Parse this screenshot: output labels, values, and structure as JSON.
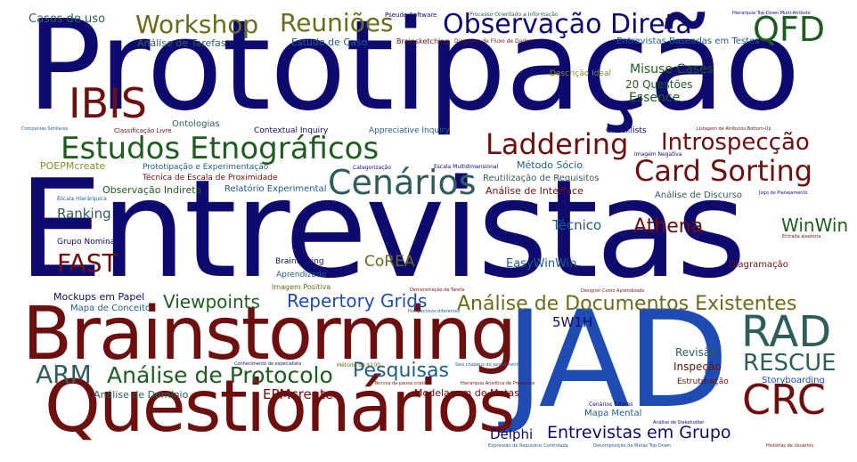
{
  "colors": {
    "navy": "#0f0a6e",
    "maroon": "#6e0f0f",
    "green": "#1f5c1f",
    "teal": "#2f5d5d",
    "olive": "#6b6b1a",
    "blue": "#1e4cb4",
    "steel": "#1f5c88",
    "light_olive": "#8a8a2a"
  },
  "words": {
    "prototipacao": "Prototipação",
    "entrevistas": "Entrevistas",
    "jad": "JAD",
    "brainstorming": "Brainstorming",
    "questionarios": "Questionários",
    "observacao_direta": "Observação Direta",
    "estudos_etnograficos": "Estudos Etnográficos",
    "cenarios": "Cenários",
    "card_sorting": "Card Sorting",
    "laddering": "Laddering",
    "introspeccao": "Introspecção",
    "workshop": "Workshop",
    "reunioes": "Reuniões",
    "qfd": "QFD",
    "ibis": "IBIS",
    "rad": "RAD",
    "crc": "CRC",
    "rescue": "RESCUE",
    "arm": "ARM",
    "analise_protocolo": "Análise de Protocolo",
    "analise_documentos": "Análise de Documentos Existentes",
    "repertory_grids": "Repertory Grids",
    "entrevistas_grupo": "Entrevistas em Grupo",
    "pesquisas": "Pesquisas",
    "viewpoints": "Viewpoints",
    "fast": "FAST",
    "athena": "Athena",
    "winwin": "WinWin",
    "corea": "CoREA",
    "easywinwin": "EasyWinWin",
    "tecnico": "Técnico",
    "ranking": "Ranking",
    "epmcreate": "EPMcreate",
    "delphi": "Delphi",
    "w5h1": "5W1H",
    "misuse_cases": "Misuse Cases",
    "essence": "Essence",
    "vinte_questoes": "20 Questões",
    "casos_de_uso": "Casos de uso",
    "analise_tarefas": "Análise de Tarefas",
    "estudo_caso": "Estudo de Caso",
    "entrevistas_testes": "Entrevistas Baseadas em Testes",
    "metodo_socio": "Método Sócio",
    "analise_interface": "Análise de Interface",
    "analise_discurso": "Análise de Discurso",
    "reutilizacao": "Reutilização de Requisitos",
    "prototipacao_exp": "Prototipação e Experimentação",
    "tecnica_escala": "Técnica de Escala de Proximidade",
    "observacao_indireta": "Observação Indireta",
    "relatorio_exp": "Relatório Experimental",
    "poepmcreate": "POEPMcreate",
    "contextual_inquiry": "Contextual Inquiry",
    "appreciative_inquiry": "Appreciative Inquiry",
    "ontologias": "Ontologias",
    "checklists": "Checklists",
    "grupo_nominal": "Grupo Nominal",
    "brainwriting": "Brainwriting",
    "aprendizado": "Aprendizado",
    "imagem_positiva": "Imagem Positiva",
    "mockups": "Mockups em Papel",
    "mapa_conceito": "Mapa de Conceito",
    "revisao": "Revisão",
    "inspecao": "Inspeção",
    "estruturacao": "Estruturação",
    "storyboarding": "Storyboarding",
    "modelagem_metas": "Modelagem de Metas",
    "analise_dominio": "Análise de Domínio",
    "mapa_mental": "Mapa Mental",
    "diagramacao": "Diagramação",
    "descricao_ideal": "Descrição Ideal",
    "brainsketching": "Brainsketching",
    "pseudo_software": "Pseudo Software",
    "processo_orientado": "Processo Orientado a Informação",
    "diagrama_fluxo": "Diagrama de Fluxo de Dados",
    "hierarquia_topdown": "Hierarquia Top-Down Multi-Atributo",
    "companias": "Companias Similares",
    "classificacao_livre": "Classificação Livre",
    "categorizacao": "Categorização",
    "escala_multi": "Escala Multidimensional",
    "imagem_negativa": "Imagem Negativa",
    "listagem_atributos": "Listagem de Atributos Bottom-Up",
    "jogo_planejamento": "Jogo de Planejamento",
    "escala_hierarquica": "Escala Hierárquica",
    "entrada_aleatoria": "Entrada aleatória",
    "demonstracao_tarefa": "Demonstração de Tarefa",
    "designer_aprendizado": "Designer Como Aprendizado",
    "perspectivas": "Perspectivas diferentes",
    "conhecimento_especialista": "Conhecimento de especialista",
    "metodo_100": "Método de $100",
    "seis_chapeus": "Seis chapéus do pensamento",
    "tecnica_pausa": "Técnica da pausa criativa",
    "hierarquia_analitica": "Hierarquia Analítica de Processos",
    "cenarios_futuros": "Cenários futuros",
    "analise_stakeholder": "Análise de Stakeholder",
    "expressao_requisitos": "Expressão de Requisitos Controlada",
    "decomposicao_metas": "Decomposição de Metas Top-Down",
    "historias_usuarios": "Histórias de Usuários"
  }
}
